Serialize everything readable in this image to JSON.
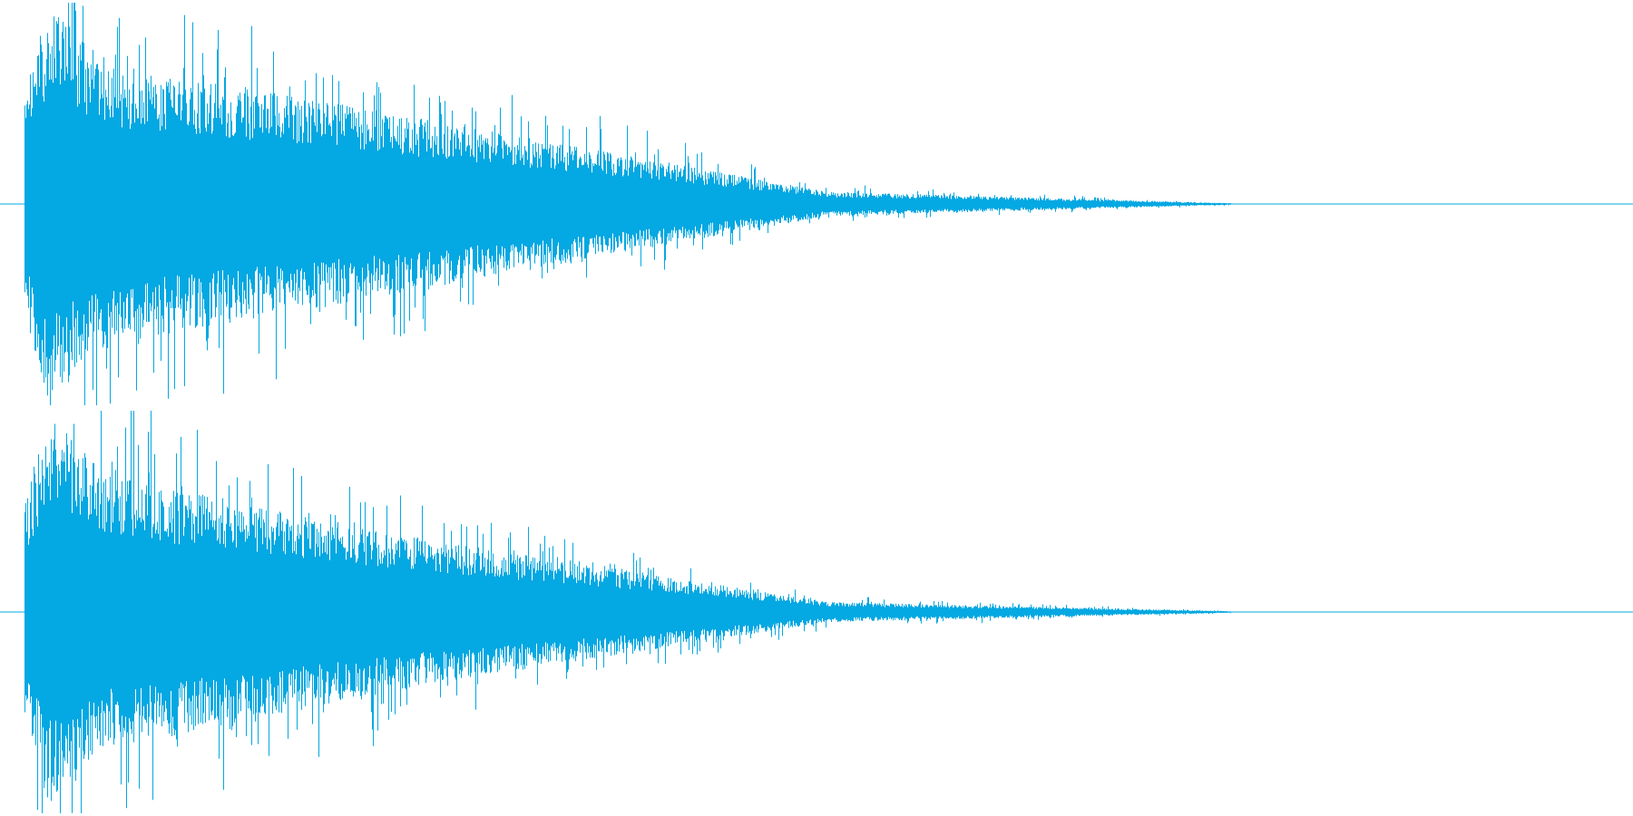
{
  "waveform": {
    "color": "#04a8e2",
    "background": "#ffffff",
    "channels": [
      {
        "name": "",
        "attack_peak_fraction": 1.0,
        "level_at_quarter": 0.42,
        "level_at_half": 0.06,
        "level_at_three_quarters": 0.004,
        "audible_length_fraction": 0.75
      },
      {
        "name": "",
        "attack_peak_fraction": 0.98,
        "level_at_quarter": 0.36,
        "level_at_half": 0.05,
        "level_at_three_quarters": 0.004,
        "audible_length_fraction": 0.74
      }
    ]
  }
}
